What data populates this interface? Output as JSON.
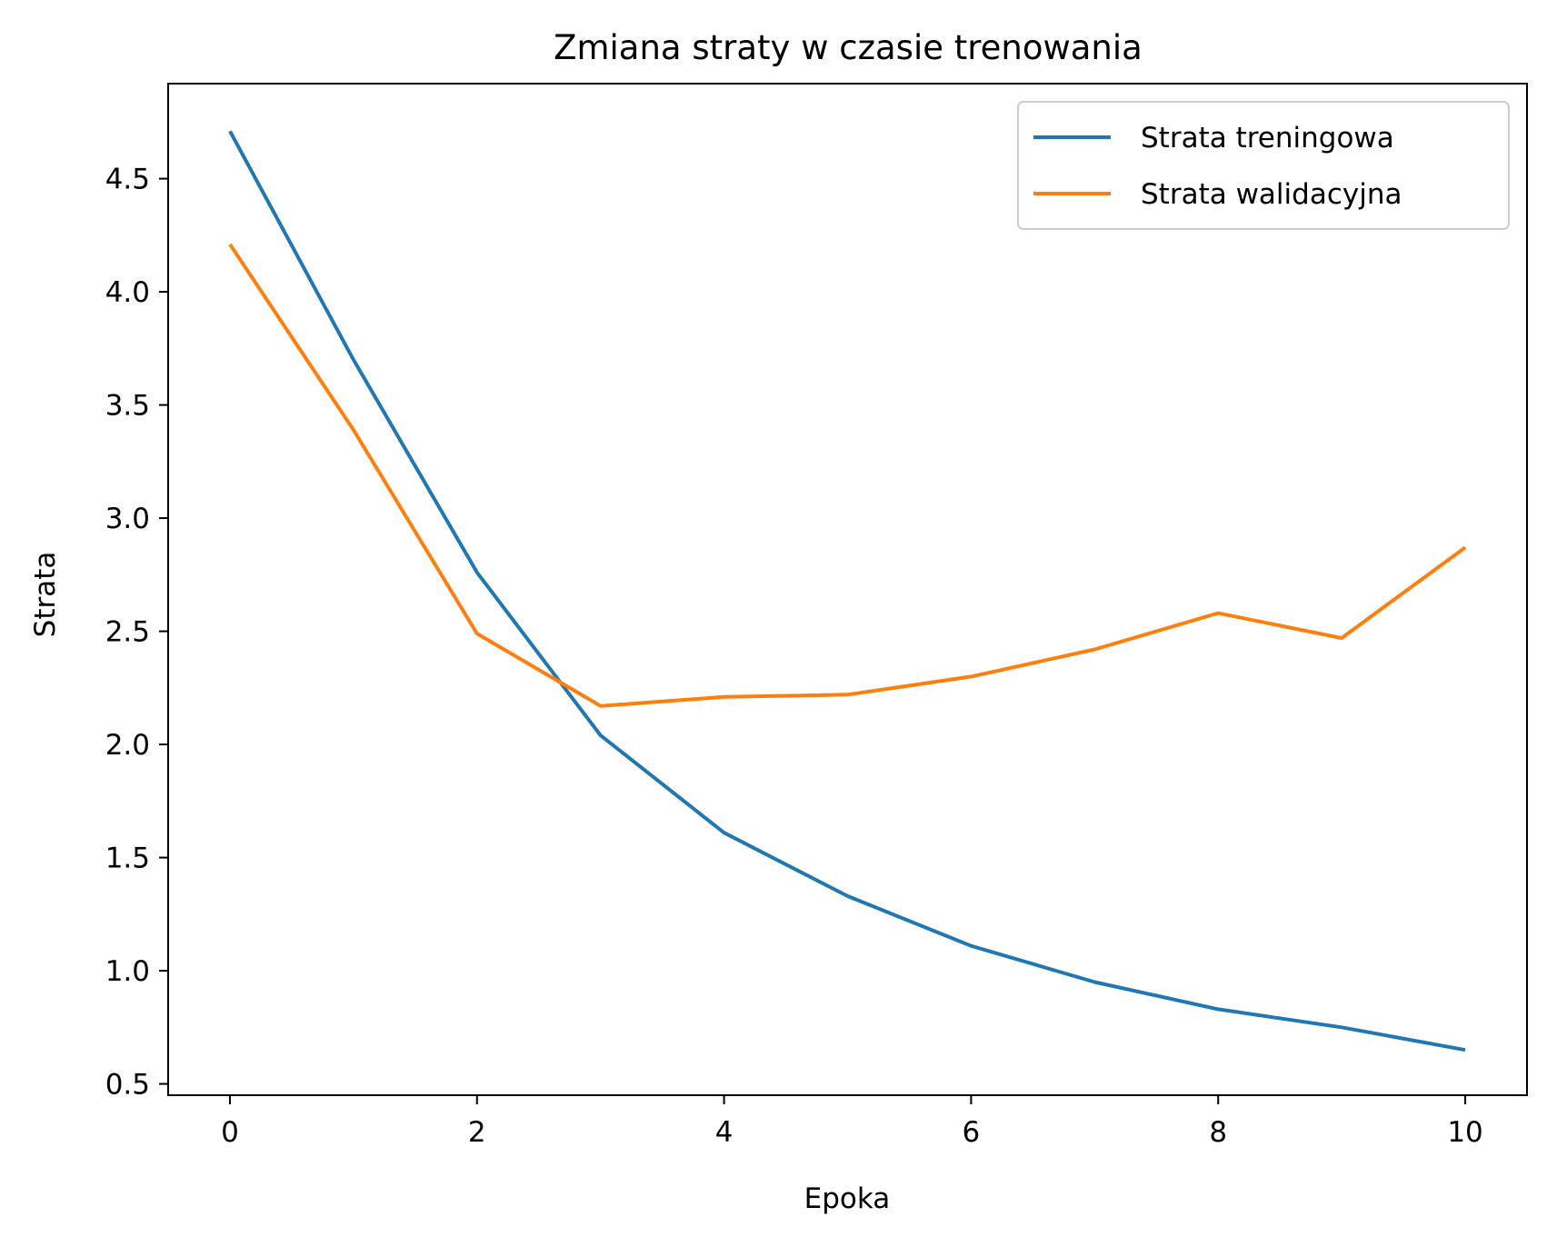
{
  "chart_data": {
    "type": "line",
    "title": "Zmiana straty w czasie trenowania",
    "xlabel": "Epoka",
    "ylabel": "Strata",
    "x": [
      0,
      1,
      2,
      3,
      4,
      5,
      6,
      7,
      8,
      9,
      10
    ],
    "series": [
      {
        "name": "Strata treningowa",
        "color": "#1f77b4",
        "values": [
          4.71,
          3.7,
          2.76,
          2.04,
          1.61,
          1.33,
          1.11,
          0.95,
          0.83,
          0.75,
          0.65
        ]
      },
      {
        "name": "Strata walidacyjna",
        "color": "#ff7f0e",
        "values": [
          4.21,
          3.39,
          2.49,
          2.17,
          2.21,
          2.22,
          2.3,
          2.42,
          2.58,
          2.47,
          2.87
        ]
      }
    ],
    "xlim": [
      -0.5,
      10.5
    ],
    "ylim": [
      0.45,
      4.92
    ],
    "xticks": [
      0,
      2,
      4,
      6,
      8,
      10
    ],
    "yticks": [
      0.5,
      1.0,
      1.5,
      2.0,
      2.5,
      3.0,
      3.5,
      4.0,
      4.5
    ],
    "xtick_labels": [
      "0",
      "2",
      "4",
      "6",
      "8",
      "10"
    ],
    "ytick_labels": [
      "0.5",
      "1.0",
      "1.5",
      "2.0",
      "2.5",
      "3.0",
      "3.5",
      "4.0",
      "4.5"
    ],
    "legend_position": "top-right",
    "grid": false
  }
}
